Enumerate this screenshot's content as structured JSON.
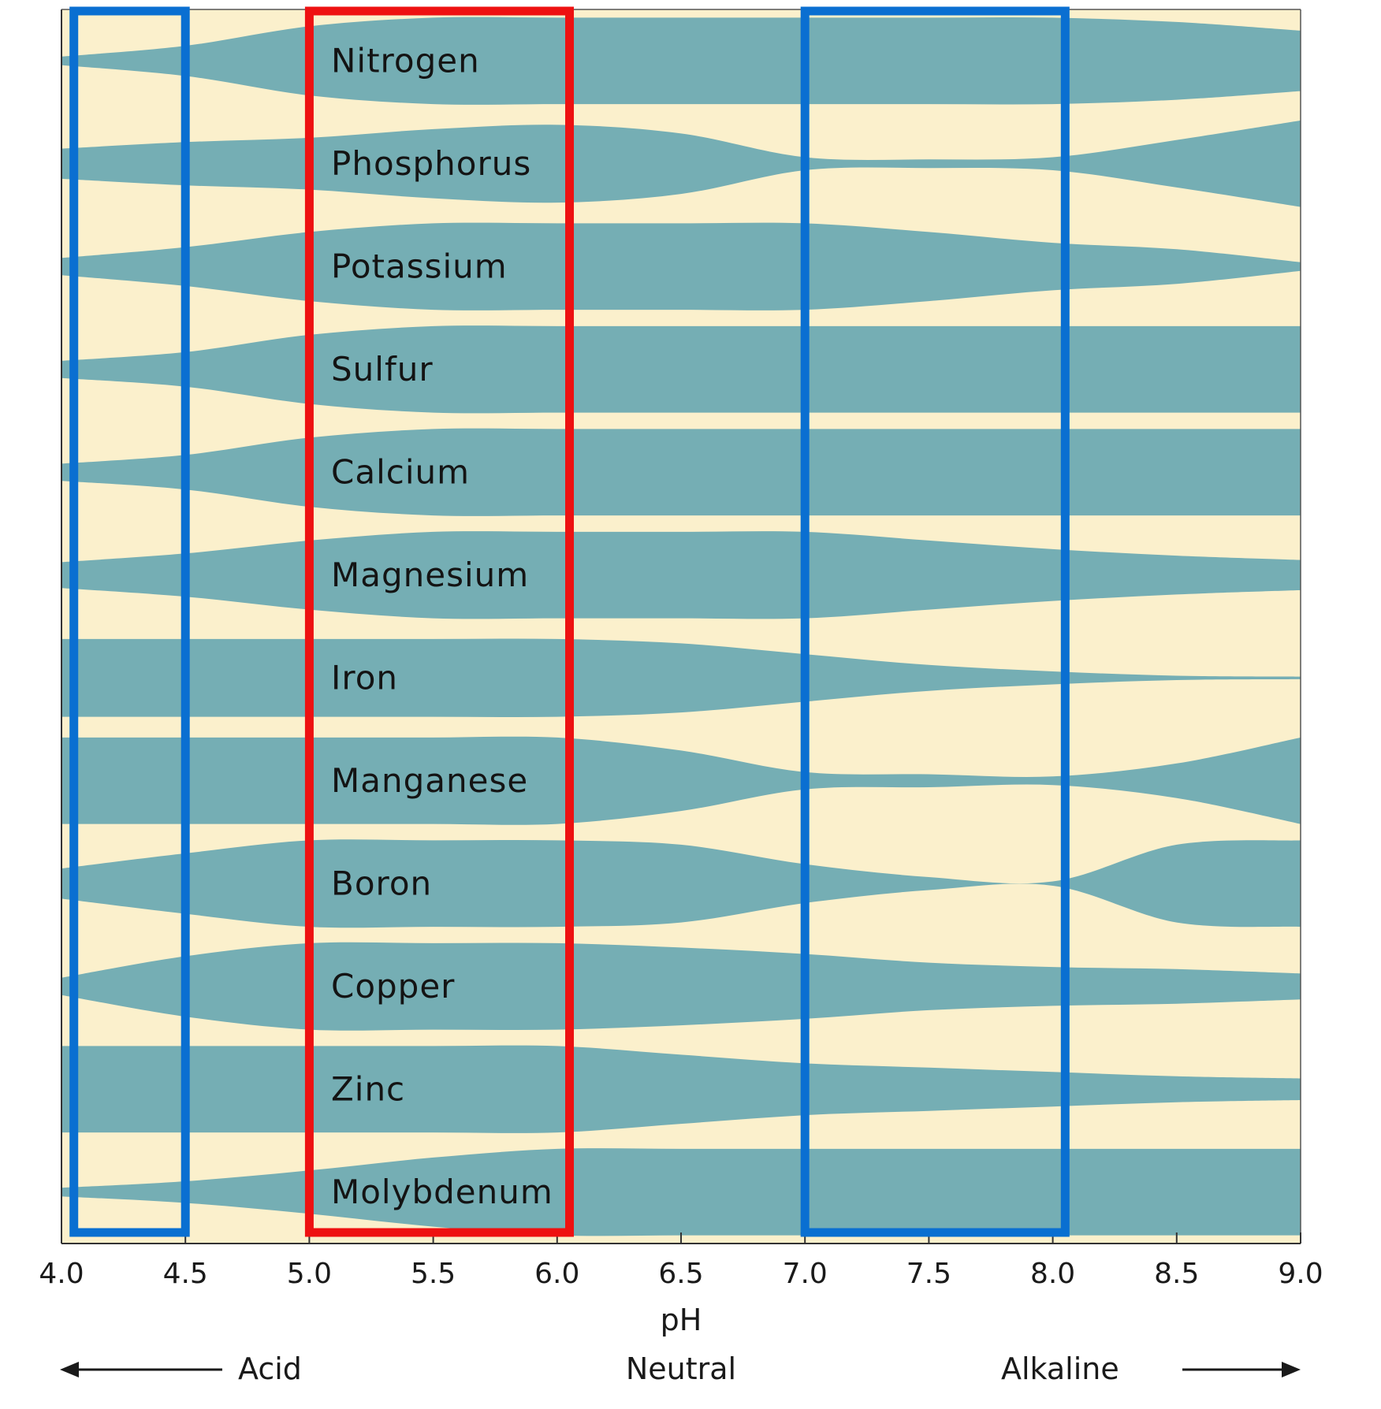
{
  "chart_data": {
    "type": "area",
    "xlabel": "pH",
    "xlim": [
      4.0,
      9.0
    ],
    "x_ticks": [
      "4.0",
      "4.5",
      "5.0",
      "5.5",
      "6.0",
      "6.5",
      "7.0",
      "7.5",
      "8.0",
      "8.5",
      "9.0"
    ],
    "direction_labels": {
      "acid": "Acid",
      "neutral": "Neutral",
      "alkaline": "Alkaline"
    },
    "x": [
      4.0,
      4.5,
      5.0,
      5.5,
      6.0,
      6.5,
      7.0,
      7.5,
      8.0,
      8.5,
      9.0
    ],
    "series": [
      {
        "name": "Nitrogen",
        "values": [
          0.1,
          0.35,
          0.8,
          1.0,
          1.0,
          1.0,
          1.0,
          1.0,
          1.0,
          0.9,
          0.7
        ]
      },
      {
        "name": "Phosphorus",
        "values": [
          0.35,
          0.5,
          0.6,
          0.8,
          0.9,
          0.7,
          0.15,
          0.1,
          0.15,
          0.55,
          1.0
        ]
      },
      {
        "name": "Potassium",
        "values": [
          0.2,
          0.45,
          0.8,
          1.0,
          1.0,
          1.0,
          1.0,
          0.8,
          0.55,
          0.4,
          0.1
        ]
      },
      {
        "name": "Sulfur",
        "values": [
          0.2,
          0.4,
          0.8,
          1.0,
          1.0,
          1.0,
          1.0,
          1.0,
          1.0,
          1.0,
          1.0
        ]
      },
      {
        "name": "Calcium",
        "values": [
          0.2,
          0.4,
          0.8,
          1.0,
          1.0,
          1.0,
          1.0,
          1.0,
          1.0,
          1.0,
          1.0
        ]
      },
      {
        "name": "Magnesium",
        "values": [
          0.3,
          0.5,
          0.8,
          1.0,
          1.0,
          1.0,
          1.0,
          0.8,
          0.6,
          0.45,
          0.35
        ]
      },
      {
        "name": "Iron",
        "values": [
          0.9,
          0.9,
          0.9,
          0.9,
          0.9,
          0.8,
          0.55,
          0.3,
          0.15,
          0.05,
          0.03
        ]
      },
      {
        "name": "Manganese",
        "values": [
          1.0,
          1.0,
          1.0,
          1.0,
          1.0,
          0.7,
          0.2,
          0.15,
          0.1,
          0.4,
          1.0
        ]
      },
      {
        "name": "Boron",
        "values": [
          0.35,
          0.7,
          1.0,
          1.0,
          1.0,
          0.9,
          0.45,
          0.15,
          0.05,
          0.9,
          1.0
        ]
      },
      {
        "name": "Copper",
        "values": [
          0.2,
          0.7,
          1.0,
          1.0,
          1.0,
          0.9,
          0.75,
          0.55,
          0.45,
          0.4,
          0.3
        ]
      },
      {
        "name": "Zinc",
        "values": [
          1.0,
          1.0,
          1.0,
          1.0,
          1.0,
          0.8,
          0.6,
          0.5,
          0.4,
          0.3,
          0.25
        ]
      },
      {
        "name": "Molybdenum",
        "values": [
          0.1,
          0.25,
          0.5,
          0.8,
          1.0,
          1.0,
          1.0,
          1.0,
          1.0,
          1.0,
          1.0
        ]
      }
    ],
    "highlights": [
      {
        "color": "#0a6fd1",
        "range": [
          4.05,
          4.5
        ]
      },
      {
        "color": "#ee1111",
        "range": [
          5.0,
          6.05
        ]
      },
      {
        "color": "#0a6fd1",
        "range": [
          7.0,
          8.05
        ]
      }
    ],
    "colors": {
      "band": "#75aeb4",
      "background": "#fbf0cc"
    }
  }
}
